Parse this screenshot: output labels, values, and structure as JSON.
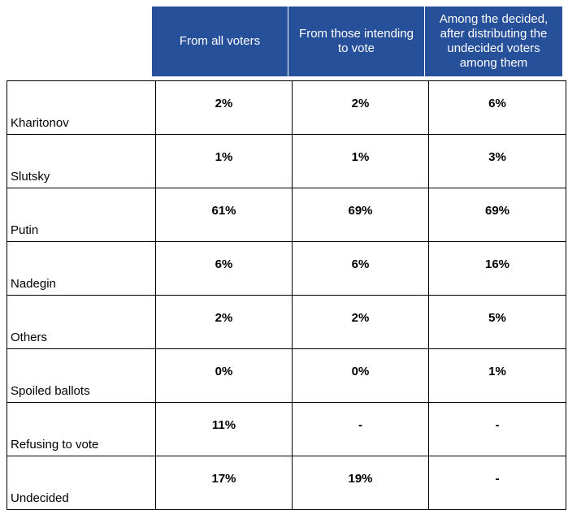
{
  "headers": [
    "From all voters",
    "From those intending to vote",
    "Among the decided, after distributing the undecided voters among them"
  ],
  "rows": [
    {
      "name": "Kharitonov",
      "all": "2%",
      "intending": "2%",
      "decided": "6%"
    },
    {
      "name": "Slutsky",
      "all": "1%",
      "intending": "1%",
      "decided": "3%"
    },
    {
      "name": "Putin",
      "all": "61%",
      "intending": "69%",
      "decided": "69%"
    },
    {
      "name": "Nadegin",
      "all": "6%",
      "intending": "6%",
      "decided": "16%"
    },
    {
      "name": "Others",
      "all": "2%",
      "intending": "2%",
      "decided": "5%"
    },
    {
      "name": "Spoiled ballots",
      "all": "0%",
      "intending": "0%",
      "decided": "1%"
    },
    {
      "name": "Refusing to vote",
      "all": "11%",
      "intending": "-",
      "decided": "-"
    },
    {
      "name": "Undecided",
      "all": "17%",
      "intending": "19%",
      "decided": "-"
    }
  ],
  "colors": {
    "header_bg": "#26509a",
    "header_text": "#ffffff",
    "decided_text": "#8b1a1a"
  }
}
